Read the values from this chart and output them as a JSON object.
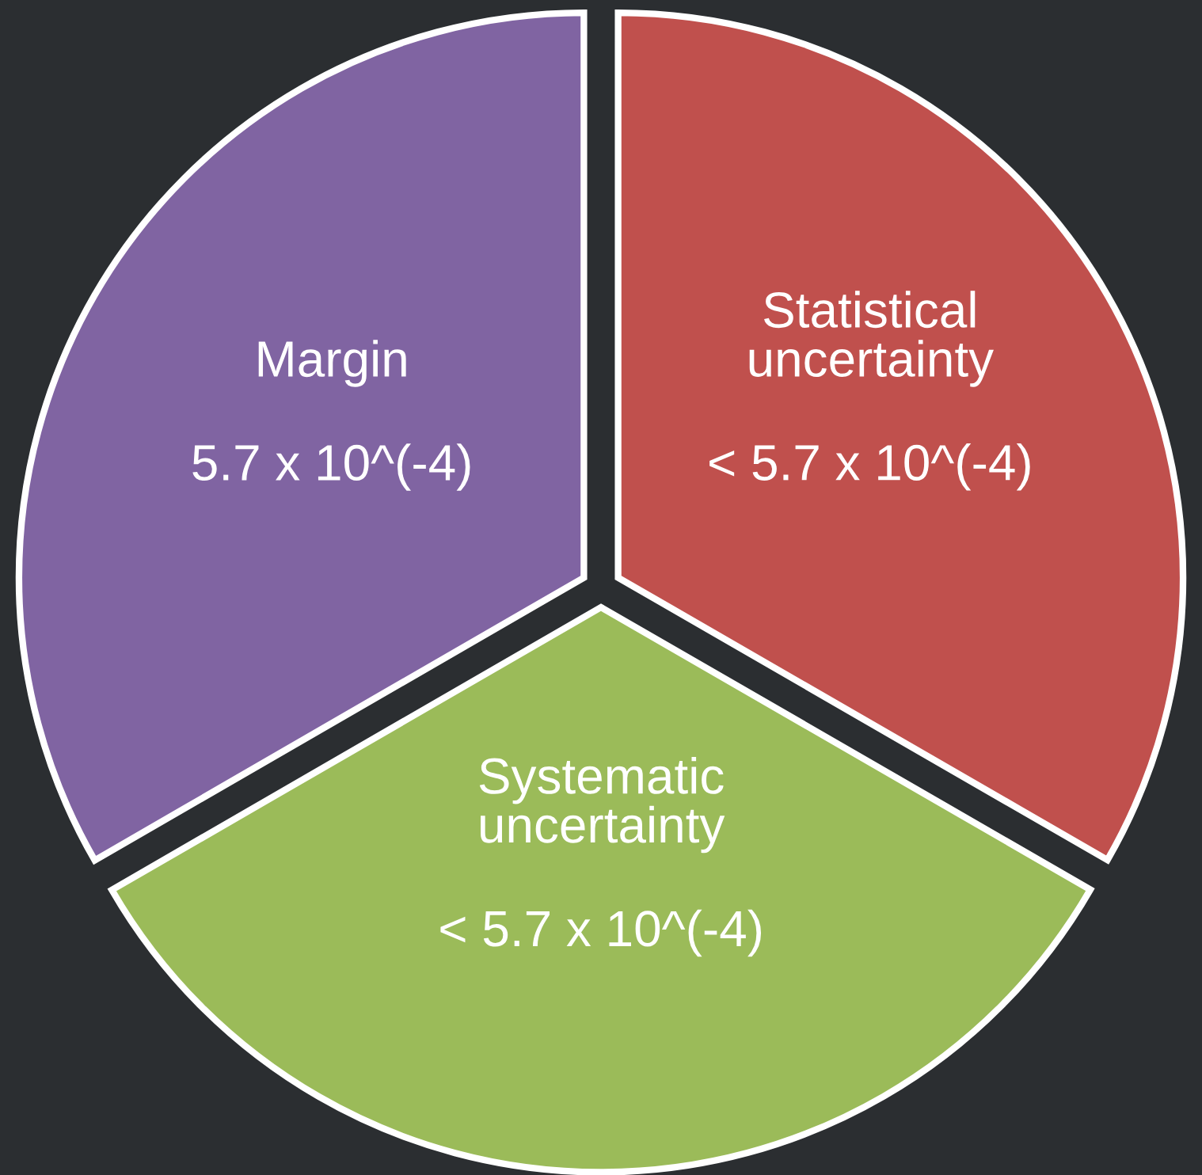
{
  "chart_data": {
    "type": "pie",
    "categories": [
      "Statistical uncertainty",
      "Systematic uncertainty",
      "Margin"
    ],
    "values": [
      33.33,
      33.33,
      33.34
    ],
    "colors": [
      "#c0504d",
      "#9bbb59",
      "#8064a2"
    ],
    "annotations": [
      "< 5.7 x 10^(-4)",
      "< 5.7 x 10^(-4)",
      "5.7 x 10^(-4)"
    ]
  }
}
